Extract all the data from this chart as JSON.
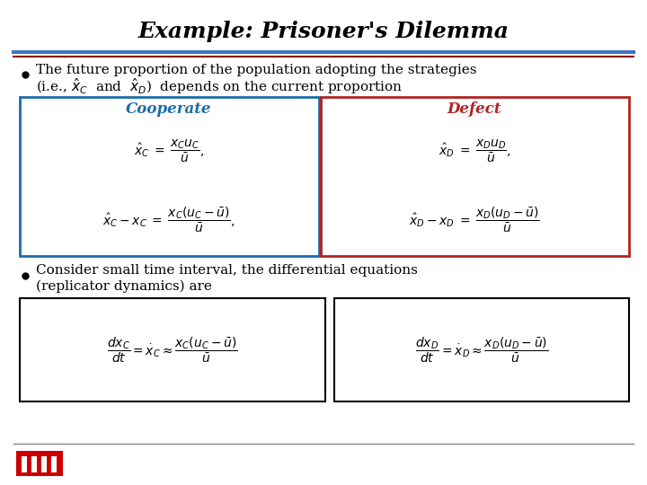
{
  "title": "Example: Prisoner's Dilemma",
  "title_fontsize": 18,
  "title_color": "#000000",
  "bg_color": "#ffffff",
  "bullet1a": "The future proportion of the population adopting the strategies",
  "bullet1b": "(i.e., $\\hat{x}_C$  and  $\\hat{x}_D$)  depends on the current proportion",
  "cooperate_label": "Cooperate",
  "cooperate_color": "#1B6CA8",
  "cooperate_box_color": "#1B6CA8",
  "defect_label": "Defect",
  "defect_color": "#B22222",
  "defect_box_color": "#B22222",
  "bullet2a": "Consider small time interval, the differential equations",
  "bullet2b": "(replicator dynamics) are",
  "line_color1": "#4472C4",
  "line_color2": "#8B0000",
  "bottom_line_color": "#808080",
  "eq_fontsize": 10,
  "text_fontsize": 11,
  "label_fontsize": 12
}
